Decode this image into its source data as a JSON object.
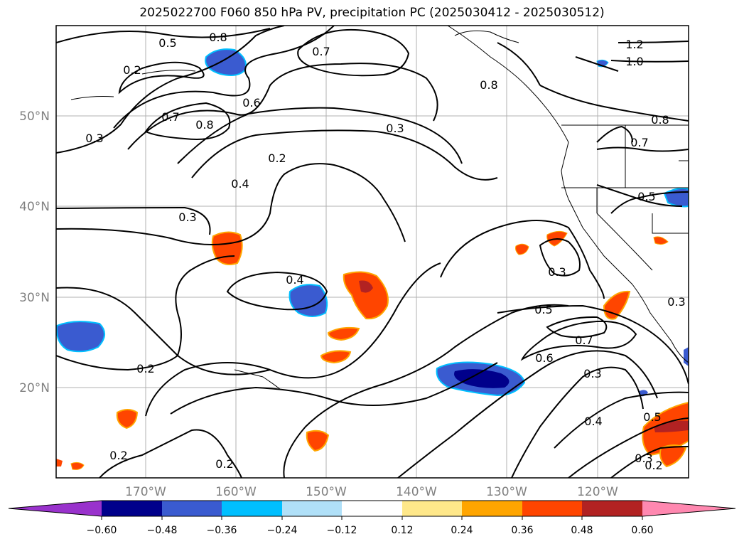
{
  "title": "2025022700 F060 850 hPa PV, precipitation PC (2025030412 - 2025030512)",
  "lat_labels": [
    "50°N",
    "40°N",
    "30°N",
    "20°N"
  ],
  "lon_labels": [
    "170°W",
    "160°W",
    "150°W",
    "140°W",
    "130°W",
    "120°W"
  ],
  "contour_labels": [
    "0.5",
    "0.8",
    "0.7",
    "0.2",
    "0.3",
    "0.7",
    "0.8",
    "0.6",
    "0.3",
    "0.2",
    "0.4",
    "0.3",
    "0.8",
    "1.2",
    "1.0",
    "0.8",
    "0.7",
    "0.5",
    "0.4",
    "0.3",
    "0.5",
    "0.7",
    "0.6",
    "0.3",
    "0.3",
    "0.2",
    "0.2",
    "0.2",
    "0.4",
    "0.5",
    "0.3",
    "0.2"
  ],
  "colorbar": {
    "ticks": [
      "−0.60",
      "−0.48",
      "−0.36",
      "−0.24",
      "−0.12",
      "0.12",
      "0.24",
      "0.36",
      "0.48",
      "0.60"
    ],
    "colors": [
      "#9932cc",
      "#00008b",
      "#3a5bd0",
      "#00bfff",
      "#b0e0f8",
      "#ffffff",
      "#ffe88a",
      "#ffa500",
      "#ff4500",
      "#b22222",
      "#ff88b0"
    ]
  }
}
